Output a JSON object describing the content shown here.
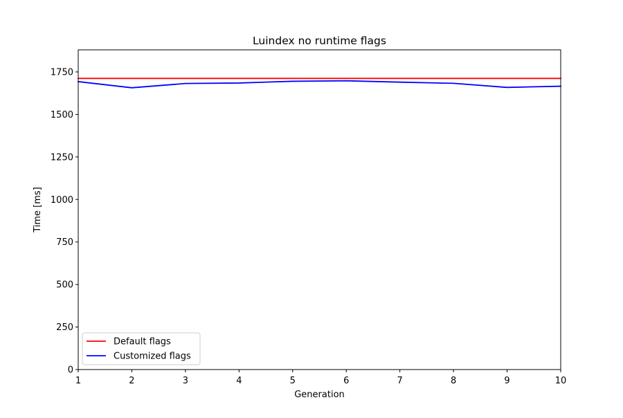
{
  "chart_data": {
    "type": "line",
    "title": "Luindex no runtime flags",
    "xlabel": "Generation",
    "ylabel": "Time [ms]",
    "xlim": [
      1,
      10
    ],
    "ylim": [
      0,
      1880
    ],
    "x_ticks": [
      1,
      2,
      3,
      4,
      5,
      6,
      7,
      8,
      9,
      10
    ],
    "y_ticks": [
      0,
      250,
      500,
      750,
      1000,
      1250,
      1500,
      1750
    ],
    "x": [
      1,
      2,
      3,
      4,
      5,
      6,
      7,
      8,
      9,
      10
    ],
    "series": [
      {
        "name": "Default flags",
        "color": "#ff0000",
        "values": [
          1712,
          1712,
          1712,
          1712,
          1712,
          1712,
          1712,
          1712,
          1712,
          1712
        ]
      },
      {
        "name": "Customized flags",
        "color": "#0000ff",
        "values": [
          1693,
          1657,
          1682,
          1685,
          1695,
          1698,
          1690,
          1683,
          1659,
          1666
        ]
      }
    ],
    "grid": false,
    "legend_position": "lower-left"
  }
}
